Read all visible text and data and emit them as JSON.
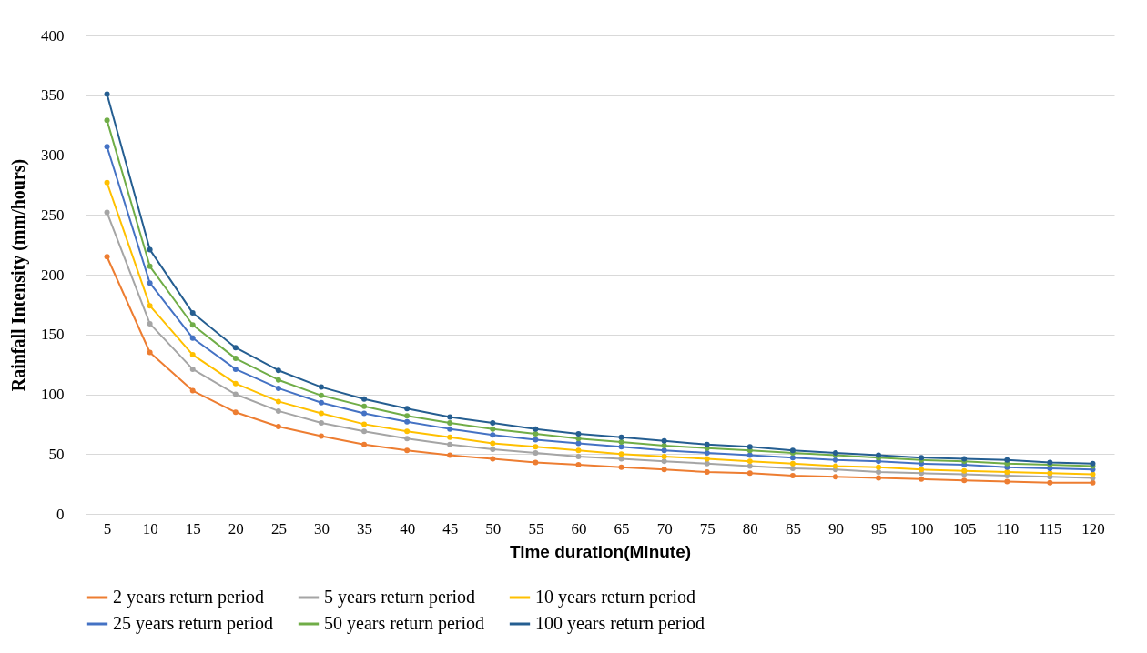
{
  "chart_data": {
    "type": "line",
    "xlabel": "Time duration(Minute)",
    "ylabel": "Rainfall Intensity (mm/hours)",
    "categories": [
      "5",
      "10",
      "15",
      "20",
      "25",
      "30",
      "35",
      "40",
      "45",
      "50",
      "55",
      "60",
      "65",
      "70",
      "75",
      "80",
      "85",
      "90",
      "95",
      "100",
      "105",
      "110",
      "115",
      "120"
    ],
    "ylim": [
      0,
      400
    ],
    "yticks": [
      0,
      50,
      100,
      150,
      200,
      250,
      300,
      350,
      400
    ],
    "grid": "y",
    "legend": "bottom",
    "marker": "circle",
    "line_style": "solid",
    "series": [
      {
        "name": "2 years return period",
        "color": "#ed7d31",
        "values": [
          215,
          135,
          103,
          85,
          73,
          65,
          58,
          53,
          49,
          46,
          43,
          41,
          39,
          37,
          35,
          34,
          32,
          31,
          30,
          29,
          28,
          27,
          26,
          26
        ]
      },
      {
        "name": "5 years return period",
        "color": "#a5a5a5",
        "values": [
          252,
          159,
          121,
          100,
          86,
          76,
          69,
          63,
          58,
          54,
          51,
          48,
          46,
          44,
          42,
          40,
          38,
          37,
          35,
          34,
          33,
          32,
          31,
          30
        ]
      },
      {
        "name": "10 years return period",
        "color": "#ffc000",
        "values": [
          277,
          174,
          133,
          109,
          94,
          84,
          75,
          69,
          64,
          59,
          56,
          53,
          50,
          48,
          46,
          44,
          42,
          40,
          39,
          37,
          36,
          35,
          34,
          33
        ]
      },
      {
        "name": "25 years return period",
        "color": "#4472c4",
        "values": [
          307,
          193,
          147,
          121,
          105,
          93,
          84,
          77,
          71,
          66,
          62,
          59,
          56,
          53,
          51,
          49,
          47,
          45,
          44,
          42,
          41,
          39,
          38,
          37
        ]
      },
      {
        "name": "50 years return period",
        "color": "#70ad47",
        "values": [
          329,
          207,
          158,
          130,
          112,
          99,
          90,
          82,
          76,
          71,
          67,
          63,
          60,
          57,
          55,
          53,
          51,
          49,
          47,
          45,
          44,
          42,
          41,
          40
        ]
      },
      {
        "name": "100 years return period",
        "color": "#255e91",
        "values": [
          351,
          221,
          168,
          139,
          120,
          106,
          96,
          88,
          81,
          76,
          71,
          67,
          64,
          61,
          58,
          56,
          53,
          51,
          49,
          47,
          46,
          45,
          43,
          42
        ]
      }
    ]
  }
}
